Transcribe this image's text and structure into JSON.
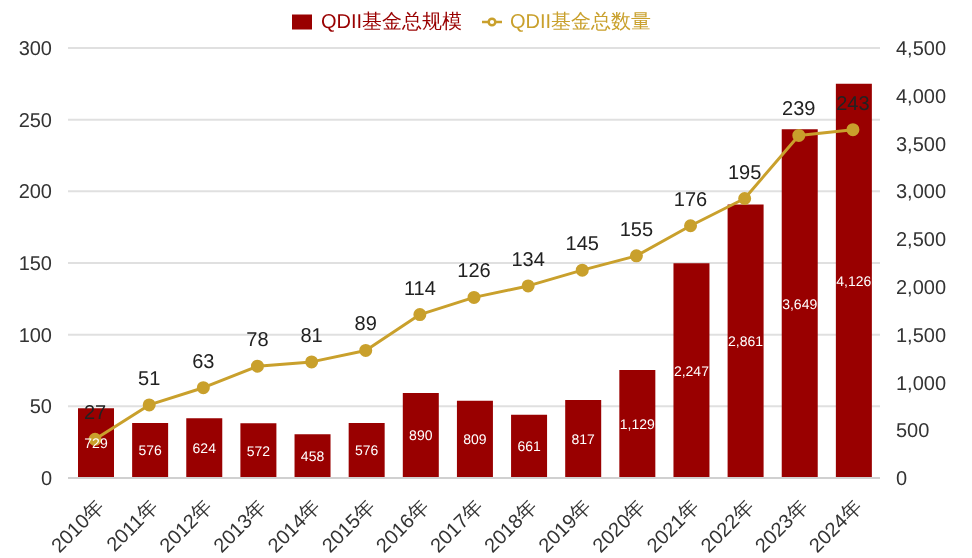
{
  "chart_data": {
    "type": "bar",
    "categories": [
      "2010年",
      "2011年",
      "2012年",
      "2013年",
      "2014年",
      "2015年",
      "2016年",
      "2017年",
      "2018年",
      "2019年",
      "2020年",
      "2021年",
      "2022年",
      "2023年",
      "2024年"
    ],
    "series": [
      {
        "name": "QDII基金总规模",
        "axis": "y2",
        "color": "#990000",
        "values": [
          729,
          576,
          624,
          572,
          458,
          576,
          890,
          809,
          661,
          817,
          1129,
          2247,
          2861,
          3649,
          4126
        ],
        "value_labels": [
          "729",
          "576",
          "624",
          "572",
          "458",
          "576",
          "890",
          "809",
          "661",
          "817",
          "1,129",
          "2,247",
          "2,861",
          "3,649",
          "4,126"
        ]
      },
      {
        "name": "QDII基金总数量",
        "type": "line",
        "color": "#c9a02c",
        "marker": "circle",
        "values": [
          27,
          51,
          63,
          78,
          81,
          89,
          114,
          126,
          134,
          145,
          155,
          176,
          195,
          239,
          243
        ],
        "value_labels": [
          "27",
          "51",
          "63",
          "78",
          "81",
          "89",
          "114",
          "126",
          "134",
          "145",
          "155",
          "176",
          "195",
          "239",
          "243"
        ]
      }
    ],
    "ylim": [
      0,
      300
    ],
    "yticks": [
      0,
      50,
      100,
      150,
      200,
      250,
      300
    ],
    "y2lim": [
      0,
      4500
    ],
    "y2ticks": [
      0,
      {
        "value": 500,
        "label": "500"
      },
      {
        "value": 1000,
        "label": "1,000"
      },
      {
        "value": 1500,
        "label": "1,500"
      },
      {
        "value": 2000,
        "label": "2,000"
      },
      {
        "value": 2500,
        "label": "2,500"
      },
      {
        "value": 3000,
        "label": "3,000"
      },
      {
        "value": 3500,
        "label": "3,500"
      },
      {
        "value": 4000,
        "label": "4,000"
      },
      {
        "value": 4500,
        "label": "4,500"
      }
    ],
    "grid": "y",
    "legend": "top"
  }
}
